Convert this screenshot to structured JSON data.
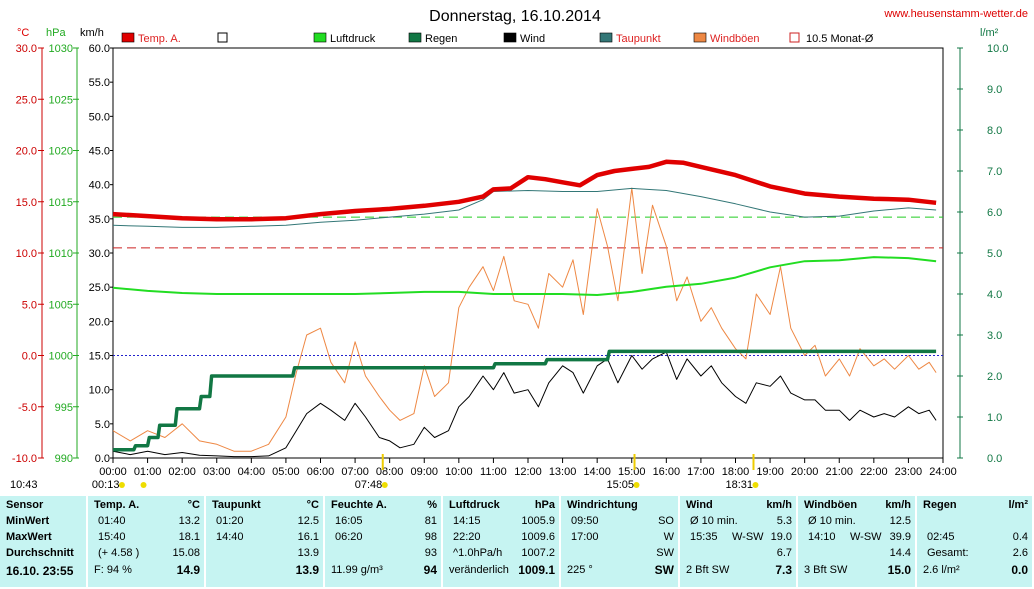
{
  "chart_data": {
    "type": "line",
    "title": "Donnerstag, 16.10.2014",
    "website": "www.heusenstamm-wetter.de",
    "axis_units": {
      "temp": "°C",
      "pressure": "hPa",
      "wind": "km/h",
      "rain": "l/m²"
    },
    "temp_ticks": [
      "30.0",
      "25.0",
      "20.0",
      "15.0",
      "10.0",
      "5.0",
      "0.0",
      "-5.0",
      "-10.0"
    ],
    "pressure_ticks": [
      "1030",
      "1025",
      "1020",
      "1015",
      "1010",
      "1005",
      "1000",
      "995",
      "990"
    ],
    "wind_ticks": [
      "60.0",
      "55.0",
      "50.0",
      "45.0",
      "40.0",
      "35.0",
      "30.0",
      "25.0",
      "20.0",
      "15.0",
      "10.0",
      "5.0",
      "0.0"
    ],
    "rain_ticks": [
      "10.0",
      "9.0",
      "8.0",
      "7.0",
      "6.0",
      "5.0",
      "4.0",
      "3.0",
      "2.0",
      "1.0",
      "0.0"
    ],
    "x_ticks": [
      "00:00",
      "01:00",
      "02:00",
      "03:00",
      "04:00",
      "05:00",
      "06:00",
      "07:00",
      "08:00",
      "09:00",
      "10:00",
      "11:00",
      "12:00",
      "13:00",
      "14:00",
      "15:00",
      "16:00",
      "17:00",
      "18:00",
      "19:00",
      "20:00",
      "21:00",
      "22:00",
      "23:00",
      "24:00"
    ],
    "ylim_wind": [
      0,
      60
    ],
    "ylim_rain": [
      0,
      10
    ],
    "legend": [
      {
        "name": "Temp. A.",
        "color": "#e00000",
        "kind": "solid"
      },
      {
        "name": "",
        "color": "#ffffff",
        "kind": "empty"
      },
      {
        "name": "Luftdruck",
        "color": "#22dd22",
        "kind": "solid"
      },
      {
        "name": "Regen",
        "color": "#117744",
        "kind": "solid"
      },
      {
        "name": "Wind",
        "color": "#000000",
        "kind": "solid"
      },
      {
        "name": "Taupunkt",
        "color": "#337777",
        "kind": "solid"
      },
      {
        "name": "Windböen",
        "color": "#ee8844",
        "kind": "solid"
      },
      {
        "name": "10.5 Monat-Ø",
        "color": "#cc2222",
        "kind": "outline"
      }
    ],
    "markers": [
      {
        "label": "10:43",
        "x": -0.1
      },
      {
        "label": "00:13",
        "x": 0.2
      },
      {
        "label": "07:48",
        "x": 7.8
      },
      {
        "label": "15:05",
        "x": 15.08
      },
      {
        "label": "18:31",
        "x": 18.52
      }
    ],
    "ref_lines": [
      {
        "name": "10.5 Monat-Ø",
        "unit": "°C",
        "value": 10.5,
        "color": "#cc2222"
      },
      {
        "name": "Taupunkt-Ø",
        "unit": "°C",
        "value": 13.5,
        "color": "#22cc22"
      },
      {
        "name": "0 °C",
        "unit": "°C",
        "value": 0.0,
        "color": "#2222cc"
      }
    ],
    "series": [
      {
        "name": "Temp. A.",
        "unit": "°C",
        "color": "#e00000",
        "x": [
          0,
          1,
          2,
          3,
          4,
          5,
          6,
          7,
          8,
          9,
          10,
          10.7,
          11,
          11.5,
          12,
          12.5,
          13,
          13.5,
          14,
          14.5,
          15,
          15.5,
          16,
          16.5,
          17,
          18,
          19,
          20,
          21,
          22,
          23,
          23.8
        ],
        "y": [
          13.8,
          13.6,
          13.4,
          13.3,
          13.3,
          13.4,
          13.8,
          14.1,
          14.3,
          14.6,
          15.0,
          15.5,
          16.2,
          16.3,
          17.4,
          17.2,
          16.9,
          16.6,
          17.6,
          18.0,
          18.2,
          18.4,
          18.9,
          18.8,
          18.4,
          17.6,
          16.5,
          15.8,
          15.5,
          15.3,
          15.2,
          14.9
        ]
      },
      {
        "name": "Taupunkt",
        "unit": "°C",
        "color": "#337777",
        "x": [
          0,
          1,
          2,
          3,
          4,
          5,
          6,
          7,
          8,
          9,
          10,
          10.7,
          11,
          12,
          13,
          14,
          15,
          16,
          17,
          18,
          19,
          20,
          21,
          22,
          23,
          23.8
        ],
        "y": [
          12.7,
          12.6,
          12.5,
          12.5,
          12.6,
          12.7,
          13.0,
          13.2,
          13.5,
          13.8,
          14.2,
          15.2,
          16.0,
          16.1,
          16.0,
          16.0,
          16.3,
          16.1,
          15.5,
          14.8,
          14.0,
          13.5,
          13.6,
          14.1,
          14.4,
          14.2
        ]
      },
      {
        "name": "Luftdruck",
        "unit": "hPa",
        "color": "#22dd22",
        "x": [
          0,
          1,
          2,
          3,
          4,
          5,
          6,
          7,
          8,
          9,
          10,
          11,
          12,
          13,
          14,
          15,
          16,
          17,
          18,
          19,
          20,
          21,
          22,
          23,
          23.8
        ],
        "y": [
          1006.6,
          1006.3,
          1006.1,
          1006.0,
          1006.0,
          1006.0,
          1006.0,
          1006.0,
          1006.1,
          1006.2,
          1006.2,
          1006.0,
          1006.0,
          1006.0,
          1005.9,
          1006.2,
          1006.7,
          1007.0,
          1007.6,
          1008.6,
          1009.2,
          1009.3,
          1009.6,
          1009.5,
          1009.2
        ]
      },
      {
        "name": "Regen",
        "unit": "l/m²",
        "color": "#117744",
        "x": [
          0,
          0.6,
          0.65,
          1.0,
          1.05,
          1.3,
          1.35,
          1.8,
          1.85,
          2.5,
          2.55,
          2.8,
          2.85,
          5.2,
          5.25,
          5.7,
          5.75,
          11.0,
          11.05,
          12.5,
          12.55,
          14.3,
          14.35,
          23.8
        ],
        "y": [
          0.2,
          0.2,
          0.3,
          0.3,
          0.5,
          0.5,
          0.8,
          0.8,
          1.2,
          1.2,
          1.5,
          1.5,
          2.0,
          2.0,
          2.2,
          2.2,
          2.2,
          2.2,
          2.3,
          2.3,
          2.4,
          2.4,
          2.6,
          2.6
        ]
      },
      {
        "name": "Wind",
        "unit": "km/h",
        "color": "#000000",
        "x": [
          0,
          0.5,
          1,
          1.5,
          2,
          2.5,
          3,
          3.5,
          4,
          4.5,
          5,
          5.3,
          5.6,
          6,
          6.3,
          6.7,
          7,
          7.3,
          7.7,
          8,
          8.3,
          8.7,
          9,
          9.3,
          9.7,
          10,
          10.3,
          10.7,
          11,
          11.3,
          11.6,
          12,
          12.3,
          12.6,
          13,
          13.3,
          13.6,
          14,
          14.3,
          14.6,
          15,
          15.3,
          15.6,
          16,
          16.3,
          16.6,
          17,
          17.3,
          17.6,
          18,
          18.3,
          18.6,
          19,
          19.3,
          19.6,
          20,
          20.3,
          20.6,
          21,
          21.3,
          21.6,
          22,
          22.3,
          22.6,
          23,
          23.3,
          23.6,
          23.8
        ],
        "y": [
          1.0,
          0.5,
          1.0,
          0.5,
          0.8,
          0.4,
          0.3,
          0.2,
          0.2,
          0.3,
          1.5,
          4.0,
          6.5,
          8.0,
          7.0,
          5.5,
          8.0,
          6.0,
          3.0,
          2.5,
          1.5,
          2.0,
          4.5,
          3.0,
          4.0,
          7.5,
          9.0,
          12.0,
          10.0,
          12.5,
          9.5,
          10.0,
          7.5,
          11.0,
          13.5,
          12.5,
          9.5,
          13.5,
          14.5,
          11.0,
          15.0,
          13.0,
          14.5,
          15.5,
          11.5,
          14.5,
          12.0,
          13.5,
          11.0,
          9.0,
          8.0,
          11.0,
          10.5,
          12.0,
          9.5,
          8.5,
          8.5,
          7.0,
          7.0,
          5.5,
          7.0,
          6.0,
          6.5,
          6.0,
          7.5,
          6.5,
          7.0,
          5.5
        ]
      },
      {
        "name": "Windböen",
        "unit": "km/h",
        "color": "#ee8844",
        "x": [
          0,
          0.5,
          1,
          1.5,
          2,
          2.5,
          3,
          3.5,
          4,
          4.5,
          5,
          5.3,
          5.6,
          6,
          6.3,
          6.7,
          7,
          7.3,
          7.7,
          8,
          8.3,
          8.7,
          9,
          9.3,
          9.7,
          10,
          10.3,
          10.7,
          11,
          11.3,
          11.6,
          12,
          12.3,
          12.6,
          13,
          13.3,
          13.6,
          14,
          14.3,
          14.6,
          15,
          15.3,
          15.6,
          16,
          16.3,
          16.6,
          17,
          17.3,
          17.6,
          18,
          18.3,
          18.6,
          19,
          19.3,
          19.6,
          20,
          20.3,
          20.6,
          21,
          21.3,
          21.6,
          22,
          22.3,
          22.6,
          23,
          23.3,
          23.6,
          23.8
        ],
        "y": [
          4.0,
          2.5,
          4.0,
          3.0,
          5.0,
          2.5,
          2.0,
          1.0,
          1.0,
          2.0,
          6.0,
          12.5,
          18.0,
          19.0,
          14.0,
          11.0,
          17.0,
          12.0,
          9.0,
          7.0,
          5.5,
          6.5,
          13.5,
          9.0,
          11.0,
          22.0,
          25.0,
          28.0,
          24.5,
          29.5,
          23.0,
          22.5,
          19.0,
          27.0,
          25.0,
          29.0,
          21.0,
          36.5,
          31.0,
          23.0,
          39.5,
          27.0,
          37.0,
          31.0,
          23.0,
          26.5,
          20.0,
          22.0,
          19.0,
          16.0,
          14.5,
          24.0,
          21.0,
          28.0,
          19.0,
          15.0,
          16.5,
          12.0,
          14.5,
          12.0,
          16.0,
          13.5,
          14.5,
          13.0,
          15.0,
          13.0,
          14.0,
          12.5
        ]
      }
    ]
  },
  "table": {
    "columns": [
      {
        "title": "Sensor",
        "unit": "",
        "rows": [
          "MinWert",
          "MaxWert",
          "Durchschnitt"
        ],
        "footer": "16.10. 23:55",
        "footer_value": ""
      },
      {
        "title": "Temp. A.",
        "unit": "°C",
        "rows_left": [
          "01:40",
          "15:40",
          "(+ 4.58 )"
        ],
        "rows_right": [
          "13.2",
          "18.1",
          "15.08"
        ],
        "footer": "F: 94 %",
        "footer_value": "14.9"
      },
      {
        "title": "Taupunkt",
        "unit": "°C",
        "rows_left": [
          "01:20",
          "14:40",
          ""
        ],
        "rows_right": [
          "12.5",
          "16.1",
          "13.9"
        ],
        "footer": "",
        "footer_value": "13.9"
      },
      {
        "title": "Feuchte A.",
        "unit": "%",
        "rows_left": [
          "16:05",
          "06:20",
          ""
        ],
        "rows_right": [
          "81",
          "98",
          "93"
        ],
        "footer": "11.99 g/m³",
        "footer_value": "94"
      },
      {
        "title": "Luftdruck",
        "unit": "hPa",
        "rows_left": [
          "14:15",
          "22:20",
          "^1.0hPa/h"
        ],
        "rows_right": [
          "1005.9",
          "1009.6",
          "1007.2"
        ],
        "footer": "veränderlich",
        "footer_value": "1009.1"
      },
      {
        "title": "Windrichtung",
        "unit": "",
        "rows_left": [
          "09:50",
          "17:00",
          ""
        ],
        "rows_right": [
          "SO",
          "W",
          "SW"
        ],
        "footer": "225 °",
        "footer_value": "SW"
      },
      {
        "title": "Wind",
        "unit": "km/h",
        "rows_left": [
          "Ø 10 min.",
          "15:35",
          ""
        ],
        "rows_mid": [
          "",
          "W-SW",
          ""
        ],
        "rows_right": [
          "5.3",
          "19.0",
          "6.7"
        ],
        "footer": "2 Bft SW",
        "footer_value": "7.3"
      },
      {
        "title": "Windböen",
        "unit": "km/h",
        "rows_left": [
          "Ø 10 min.",
          "14:10",
          ""
        ],
        "rows_mid": [
          "",
          "W-SW",
          ""
        ],
        "rows_right": [
          "12.5",
          "39.9",
          "14.4"
        ],
        "footer": "3 Bft SW",
        "footer_value": "15.0"
      },
      {
        "title": "Regen",
        "unit": "l/m²",
        "rows_left": [
          "",
          "02:45",
          "Gesamt:"
        ],
        "rows_right": [
          "",
          "0.4",
          "2.6"
        ],
        "footer": "2.6 l/m²",
        "footer_value": "0.0"
      }
    ]
  }
}
